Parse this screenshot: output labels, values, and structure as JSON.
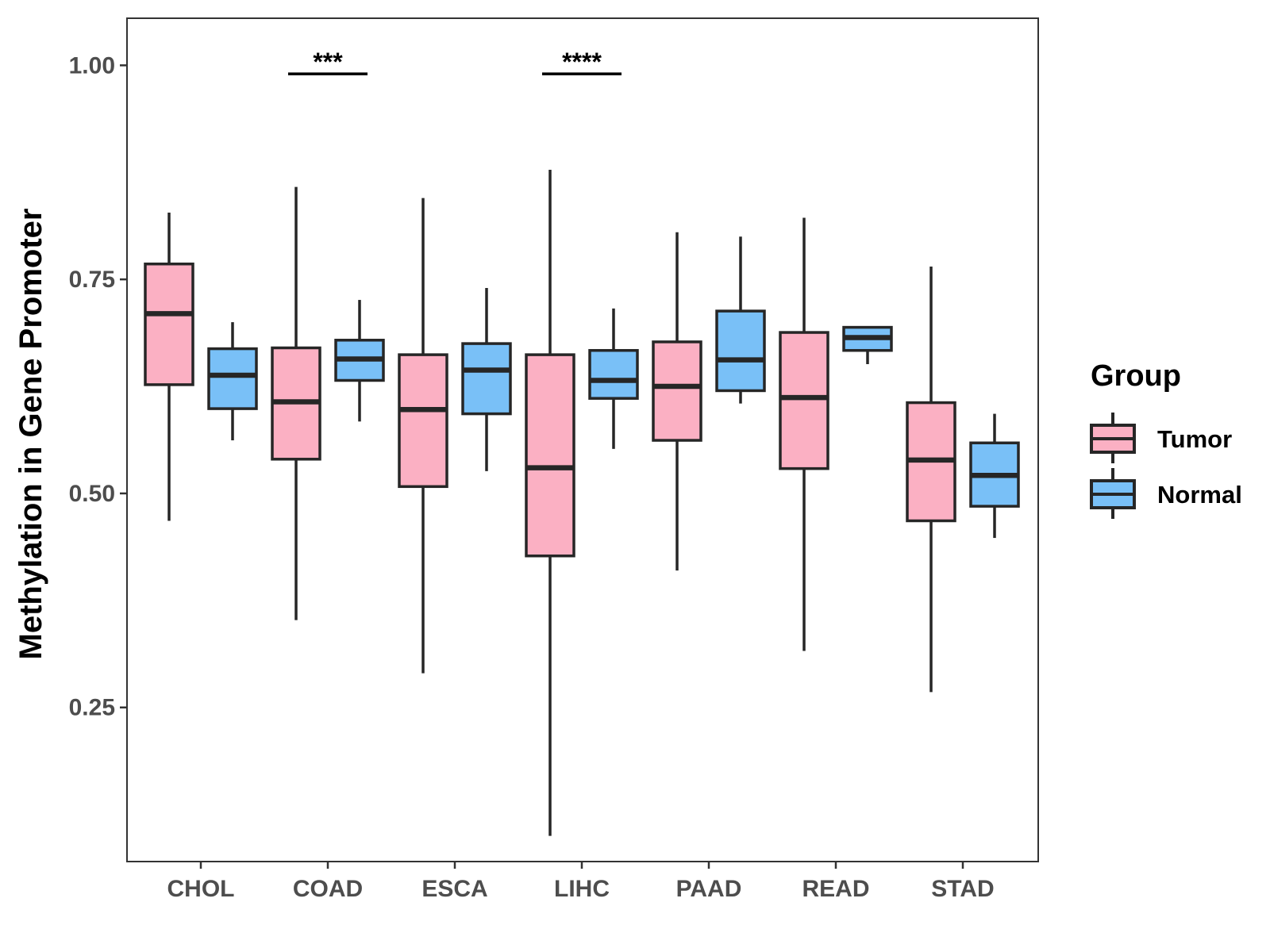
{
  "chart_data": {
    "type": "boxplot",
    "ylabel": "Methylation in Gene Promoter",
    "xlabel": "",
    "ylim": [
      0.07,
      1.055
    ],
    "yticks": [
      0.25,
      0.5,
      0.75,
      1.0
    ],
    "ytick_labels": [
      "0.25",
      "0.50",
      "0.75",
      "1.00"
    ],
    "categories": [
      "CHOL",
      "COAD",
      "ESCA",
      "LIHC",
      "PAAD",
      "READ",
      "STAD"
    ],
    "legend": {
      "title": "Group",
      "position": "right",
      "entries": [
        {
          "name": "Tumor",
          "color": "#fbb0c3"
        },
        {
          "name": "Normal",
          "color": "#79c0f7"
        }
      ]
    },
    "series": [
      {
        "name": "Tumor",
        "color": "#fbb0c3",
        "boxes": [
          {
            "category": "CHOL",
            "min": 0.468,
            "q1": 0.627,
            "median": 0.71,
            "q3": 0.768,
            "max": 0.828
          },
          {
            "category": "COAD",
            "min": 0.352,
            "q1": 0.54,
            "median": 0.607,
            "q3": 0.67,
            "max": 0.858
          },
          {
            "category": "ESCA",
            "min": 0.29,
            "q1": 0.508,
            "median": 0.598,
            "q3": 0.662,
            "max": 0.845
          },
          {
            "category": "LIHC",
            "min": 0.1,
            "q1": 0.427,
            "median": 0.53,
            "q3": 0.662,
            "max": 0.878
          },
          {
            "category": "PAAD",
            "min": 0.41,
            "q1": 0.562,
            "median": 0.625,
            "q3": 0.677,
            "max": 0.805
          },
          {
            "category": "READ",
            "min": 0.316,
            "q1": 0.529,
            "median": 0.612,
            "q3": 0.688,
            "max": 0.822
          },
          {
            "category": "STAD",
            "min": 0.268,
            "q1": 0.468,
            "median": 0.539,
            "q3": 0.606,
            "max": 0.765
          }
        ]
      },
      {
        "name": "Normal",
        "color": "#79c0f7",
        "boxes": [
          {
            "category": "CHOL",
            "min": 0.562,
            "q1": 0.599,
            "median": 0.638,
            "q3": 0.669,
            "max": 0.7
          },
          {
            "category": "COAD",
            "min": 0.584,
            "q1": 0.632,
            "median": 0.657,
            "q3": 0.679,
            "max": 0.726
          },
          {
            "category": "ESCA",
            "min": 0.526,
            "q1": 0.593,
            "median": 0.644,
            "q3": 0.675,
            "max": 0.74
          },
          {
            "category": "LIHC",
            "min": 0.552,
            "q1": 0.611,
            "median": 0.632,
            "q3": 0.667,
            "max": 0.716
          },
          {
            "category": "PAAD",
            "min": 0.605,
            "q1": 0.62,
            "median": 0.656,
            "q3": 0.713,
            "max": 0.8
          },
          {
            "category": "READ",
            "min": 0.651,
            "q1": 0.667,
            "median": 0.682,
            "q3": 0.694,
            "max": 0.695
          },
          {
            "category": "STAD",
            "min": 0.448,
            "q1": 0.485,
            "median": 0.521,
            "q3": 0.559,
            "max": 0.593
          }
        ]
      }
    ],
    "annotations": [
      {
        "category": "COAD",
        "text": "***",
        "y": 0.99
      },
      {
        "category": "LIHC",
        "text": "****",
        "y": 0.99
      }
    ]
  }
}
